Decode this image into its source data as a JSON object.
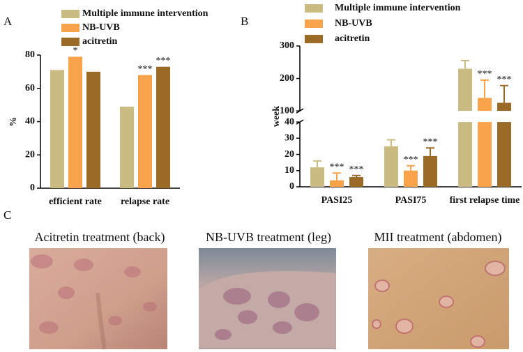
{
  "chart_data": [
    {
      "type": "bar",
      "panel_label": "A",
      "y_label": "%",
      "categories": [
        "efficient rate",
        "relapse rate"
      ],
      "series": [
        {
          "name": "Multiple immune intervention",
          "color": "#c9bb82",
          "values": [
            71,
            49
          ],
          "significance": [
            null,
            null
          ]
        },
        {
          "name": "NB-UVB",
          "color": "#f9a44b",
          "values": [
            79,
            68
          ],
          "significance": [
            "*",
            "***"
          ]
        },
        {
          "name": "acitretin",
          "color": "#9b6a27",
          "values": [
            70,
            73
          ],
          "significance": [
            null,
            "***"
          ]
        }
      ],
      "ylim": [
        0,
        80
      ],
      "yticks": [
        0,
        20,
        40,
        60,
        80
      ]
    },
    {
      "type": "bar",
      "panel_label": "B",
      "y_label": "week",
      "categories": [
        "PASI25",
        "PASI75",
        "first relapse time"
      ],
      "series": [
        {
          "name": "Multiple immune intervention",
          "color": "#c9bb82",
          "values": [
            12,
            25,
            230
          ],
          "errors": [
            4,
            4,
            25
          ],
          "significance": [
            null,
            null,
            null
          ]
        },
        {
          "name": "NB-UVB",
          "color": "#f9a44b",
          "values": [
            4,
            10,
            140
          ],
          "errors": [
            4.5,
            3,
            55
          ],
          "significance": [
            "***",
            "***",
            "***"
          ]
        },
        {
          "name": "acitretin",
          "color": "#9b6a27",
          "values": [
            6,
            19,
            125
          ],
          "errors": [
            1,
            5,
            53
          ],
          "significance": [
            "***",
            "***",
            "***"
          ]
        }
      ],
      "ylim": [
        0,
        300
      ],
      "ybreak": [
        40,
        100
      ],
      "yticks": [
        0,
        10,
        20,
        30,
        40,
        100,
        200,
        300
      ]
    }
  ],
  "photos": {
    "panel_label": "C",
    "items": [
      {
        "caption": "Acitretin treatment (back)"
      },
      {
        "caption": "NB-UVB  treatment (leg)"
      },
      {
        "caption": "MII treatment (abdomen)"
      }
    ]
  }
}
